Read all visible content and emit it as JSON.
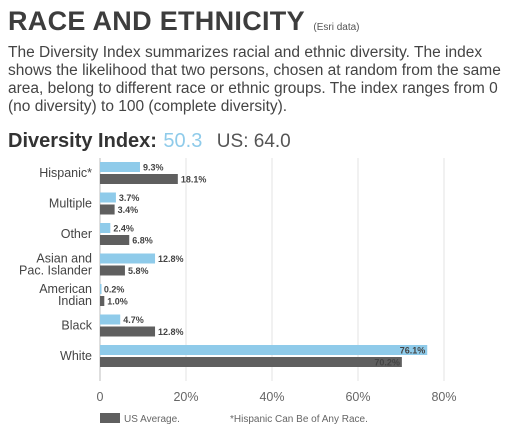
{
  "header": {
    "title": "RACE AND ETHNICITY",
    "source_note": "(Esri data)",
    "description": "The Diversity Index summarizes racial and ethnic diversity. The index shows the likelihood that two persons, chosen at random from the same area, belong to different race or ethnic groups. The index ranges from 0 (no diversity) to 100 (complete diversity)."
  },
  "diversity": {
    "label": "Diversity Index:",
    "value": "50.3",
    "us_label": "US: 64.0"
  },
  "colors": {
    "local": "#8fcbea",
    "us": "#5f5f5f"
  },
  "chart_data": {
    "type": "bar",
    "orientation": "horizontal",
    "categories": [
      [
        "Hispanic*"
      ],
      [
        "Multiple"
      ],
      [
        "Other"
      ],
      [
        "Asian and",
        "Pac. Islander"
      ],
      [
        "American",
        "Indian"
      ],
      [
        "Black"
      ],
      [
        "White"
      ]
    ],
    "series": [
      {
        "values": [
          9.3,
          3.7,
          2.4,
          12.8,
          0.2,
          4.7,
          76.1
        ],
        "labels": [
          "9.3%",
          "3.7%",
          "2.4%",
          "12.8%",
          "0.2%",
          "4.7%",
          "76.1%"
        ]
      },
      {
        "name": "US Average.",
        "values": [
          18.1,
          3.4,
          6.8,
          5.8,
          1.0,
          12.8,
          70.2
        ],
        "labels": [
          "18.1%",
          "3.4%",
          "6.8%",
          "5.8%",
          "1.0%",
          "12.8%",
          "70.2%"
        ]
      }
    ],
    "xlim": [
      0,
      80
    ],
    "xticks": [
      0,
      20,
      40,
      60,
      80
    ],
    "xtick_labels": [
      "0",
      "20%",
      "40%",
      "60%",
      "80%"
    ],
    "legend": {
      "placement": "bottom-left",
      "label": "US Average."
    },
    "footnote": "*Hispanic Can Be of Any Race.",
    "grid": true
  }
}
